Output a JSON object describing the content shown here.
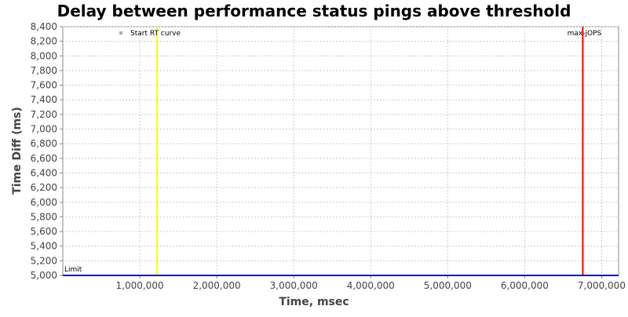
{
  "chart_data": {
    "type": "line",
    "title": "Delay between performance status pings above threshold",
    "xlabel": "Time, msec",
    "ylabel": "Time Diff (ms)",
    "xlim": [
      0,
      7220000
    ],
    "ylim": [
      5000,
      8400
    ],
    "x_ticks": [
      1000000,
      2000000,
      3000000,
      4000000,
      5000000,
      6000000,
      7000000
    ],
    "x_tick_labels": [
      "1,000,000",
      "2,000,000",
      "3,000,000",
      "4,000,000",
      "5,000,000",
      "6,000,000",
      "7,000,000"
    ],
    "y_ticks": [
      5000,
      5200,
      5400,
      5600,
      5800,
      6000,
      6200,
      6400,
      6600,
      6800,
      7000,
      7200,
      7400,
      7600,
      7800,
      8000,
      8200,
      8400
    ],
    "y_tick_labels": [
      "5,000",
      "5,200",
      "5,400",
      "5,600",
      "5,800",
      "6,000",
      "6,200",
      "6,400",
      "6,600",
      "6,800",
      "7,000",
      "7,200",
      "7,400",
      "7,600",
      "7,800",
      "8,000",
      "8,200",
      "8,400"
    ],
    "grid": true,
    "legend": {
      "label": "Start RT curve",
      "placement": "top-left"
    },
    "markers": [
      {
        "label": "Start RT curve",
        "x": 1224000,
        "color": "#ffff00",
        "orientation": "vertical"
      },
      {
        "label": "max-jOPS",
        "x": 6755000,
        "color": "#ff0000",
        "orientation": "vertical"
      },
      {
        "label": "Limit",
        "y": 5000,
        "color": "#0000ff",
        "orientation": "horizontal"
      }
    ]
  }
}
